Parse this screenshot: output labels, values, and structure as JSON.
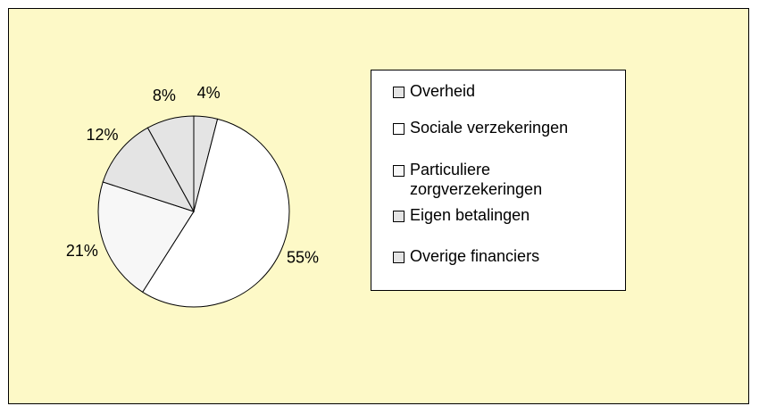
{
  "chart_data": {
    "type": "pie",
    "categories": [
      "Overheid",
      "Sociale verzekeringen",
      "Particuliere zorgverzekeringen",
      "Eigen betalingen",
      "Overige financiers"
    ],
    "values": [
      4,
      55,
      21,
      12,
      8
    ],
    "value_labels": [
      "4%",
      "55%",
      "21%",
      "12%",
      "8%"
    ],
    "colors": [
      "#e4e4e4",
      "#ffffff",
      "#f7f7f7",
      "#e4e4e4",
      "#e4e4e4"
    ],
    "legend": "right"
  }
}
